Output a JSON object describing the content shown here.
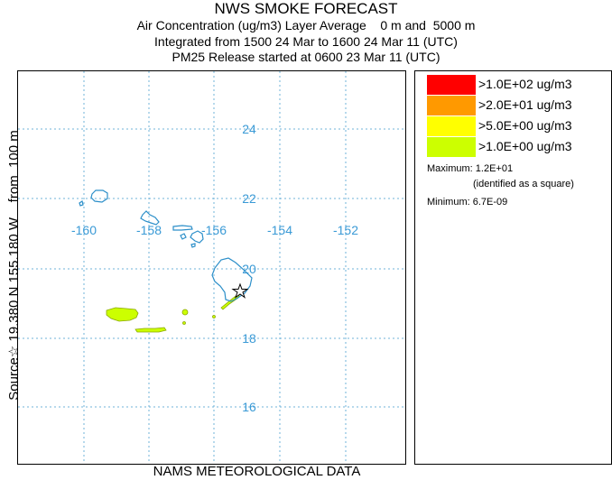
{
  "header": {
    "title": "NWS SMOKE FORECAST",
    "line1": "Air Concentration (ug/m3) Layer Average    0 m and  5000 m",
    "line2": "Integrated from 1500 24 Mar to 1600 24 Mar 11 (UTC)",
    "line3": "PM25 Release started at 0600 23 Mar 11 (UTC)"
  },
  "side_label": "Source☆ 19.380 N 155.180 W    from  100 m",
  "footer": "NAMS METEOROLOGICAL DATA",
  "map": {
    "lon_labels": [
      "-160",
      "-158",
      "-156",
      "-154",
      "-152"
    ],
    "lat_labels": [
      "24",
      "22",
      "20",
      "18",
      "16"
    ],
    "grid_color": "#6fb3d9",
    "coast_color": "#2c8fc9",
    "label_color": "#3a9ad6",
    "source_marker": "star-icon"
  },
  "legend": {
    "items": [
      {
        "label": ">1.0E+02 ug/m3",
        "color": "#ff0000"
      },
      {
        "label": ">2.0E+01 ug/m3",
        "color": "#ff9900"
      },
      {
        "label": ">5.0E+00 ug/m3",
        "color": "#ffff00"
      },
      {
        "label": ">1.0E+00 ug/m3",
        "color": "#ccff00"
      }
    ],
    "maximum": "Maximum: 1.2E+01",
    "maximum_note": "(identified as a square)",
    "minimum": "Minimum: 6.7E-09"
  }
}
